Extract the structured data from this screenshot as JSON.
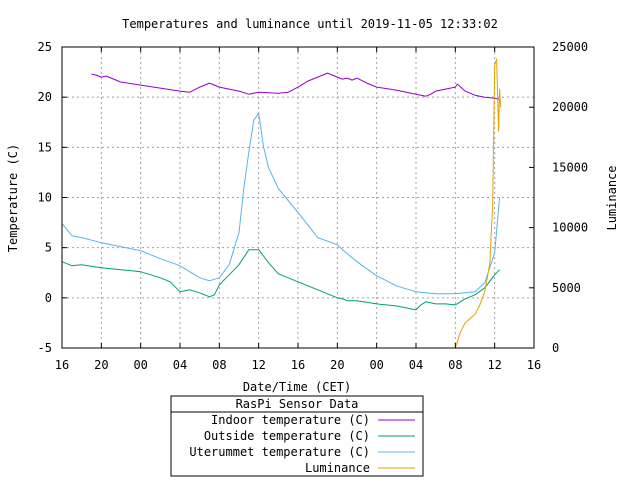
{
  "chart_data": {
    "type": "line",
    "title": "Temperatures and luminance until 2019-11-05 12:33:02",
    "xlabel": "Date/Time (CET)",
    "ylabel": "Temperature (C)",
    "y2label": "Luminance",
    "x_unit": "hours since 2019-11-03 16:00 CET",
    "xlim": [
      0,
      48
    ],
    "ylim": [
      -5,
      25
    ],
    "y2lim": [
      0,
      25000
    ],
    "x_ticks": [
      {
        "x": 0,
        "label": "16"
      },
      {
        "x": 4,
        "label": "20"
      },
      {
        "x": 8,
        "label": "00"
      },
      {
        "x": 12,
        "label": "04"
      },
      {
        "x": 16,
        "label": "08"
      },
      {
        "x": 20,
        "label": "12"
      },
      {
        "x": 24,
        "label": "16"
      },
      {
        "x": 28,
        "label": "20"
      },
      {
        "x": 32,
        "label": "00"
      },
      {
        "x": 36,
        "label": "04"
      },
      {
        "x": 40,
        "label": "08"
      },
      {
        "x": 44,
        "label": "12"
      },
      {
        "x": 48,
        "label": "16"
      }
    ],
    "y_ticks": [
      -5,
      0,
      5,
      10,
      15,
      20,
      25
    ],
    "y2_ticks": [
      0,
      5000,
      10000,
      15000,
      20000,
      25000
    ],
    "grid": true,
    "legend_title": "RasPi Sensor Data",
    "legend_position": "bottom",
    "series": [
      {
        "name": "Indoor temperature (C)",
        "color": "#9400d3",
        "axis": "y",
        "x": [
          3,
          3.5,
          4,
          4.5,
          5,
          6,
          8,
          10,
          12,
          13,
          14,
          15,
          16,
          18,
          19,
          20,
          22,
          23,
          24,
          25,
          26,
          27,
          28.5,
          29,
          29.5,
          30,
          31,
          32,
          34,
          36,
          37,
          37.5,
          38,
          39,
          40,
          40.2,
          41,
          42,
          43,
          44,
          44.5
        ],
        "values": [
          22.3,
          22.2,
          22.0,
          22.1,
          21.9,
          21.5,
          21.2,
          20.9,
          20.6,
          20.5,
          21.0,
          21.4,
          21.0,
          20.6,
          20.3,
          20.5,
          20.4,
          20.5,
          21.0,
          21.6,
          22.0,
          22.4,
          21.8,
          21.9,
          21.7,
          21.9,
          21.4,
          21.0,
          20.7,
          20.3,
          20.1,
          20.3,
          20.6,
          20.8,
          21.0,
          21.3,
          20.6,
          20.2,
          20.0,
          19.9,
          19.8
        ]
      },
      {
        "name": "Outside temperature (C)",
        "color": "#009e73",
        "axis": "y",
        "x": [
          0,
          1,
          2,
          4,
          6,
          8,
          10,
          11,
          12,
          13,
          14,
          14.5,
          15,
          15.5,
          16,
          17,
          18,
          19,
          20,
          21,
          22,
          23,
          24,
          26,
          28,
          28.5,
          29,
          30,
          32,
          34,
          35,
          36,
          36.5,
          37,
          38,
          39,
          40,
          41,
          42,
          43,
          44,
          44.5
        ],
        "values": [
          3.6,
          3.2,
          3.3,
          3.0,
          2.8,
          2.6,
          2.0,
          1.6,
          0.6,
          0.8,
          0.5,
          0.3,
          0.1,
          0.3,
          1.3,
          2.3,
          3.3,
          4.8,
          4.8,
          3.5,
          2.4,
          2.0,
          1.6,
          0.8,
          0.0,
          -0.1,
          -0.3,
          -0.3,
          -0.6,
          -0.8,
          -1.0,
          -1.2,
          -0.7,
          -0.4,
          -0.6,
          -0.6,
          -0.7,
          -0.1,
          0.3,
          1.0,
          2.3,
          2.8
        ]
      },
      {
        "name": "Uterummet temperature (C)",
        "color": "#56b4e9",
        "axis": "y",
        "x": [
          0,
          1,
          2,
          4,
          6,
          8,
          10,
          12,
          14,
          15,
          16,
          17,
          18,
          18.5,
          19,
          19.5,
          20,
          20.5,
          21,
          22,
          24,
          26,
          28,
          29,
          30,
          32,
          34,
          36,
          38,
          40,
          42,
          43,
          44,
          44.5
        ],
        "values": [
          7.4,
          6.2,
          6.0,
          5.5,
          5.1,
          4.7,
          3.9,
          3.2,
          2.0,
          1.7,
          2.0,
          3.3,
          6.5,
          11.0,
          14.5,
          17.7,
          18.4,
          15.0,
          13.0,
          10.9,
          8.5,
          6.0,
          5.3,
          4.4,
          3.6,
          2.2,
          1.2,
          0.6,
          0.4,
          0.4,
          0.6,
          1.5,
          4.5,
          10.0
        ]
      },
      {
        "name": "Luminance",
        "color": "#e69f00",
        "axis": "y2",
        "x": [
          40,
          40.5,
          41,
          42,
          42.5,
          43,
          43.5,
          43.8,
          44,
          44.2,
          44.4,
          44.5,
          44.6
        ],
        "values": [
          0,
          1300,
          2100,
          2800,
          3600,
          4700,
          7000,
          12000,
          23500,
          24000,
          18000,
          21500,
          20000
        ]
      }
    ]
  }
}
